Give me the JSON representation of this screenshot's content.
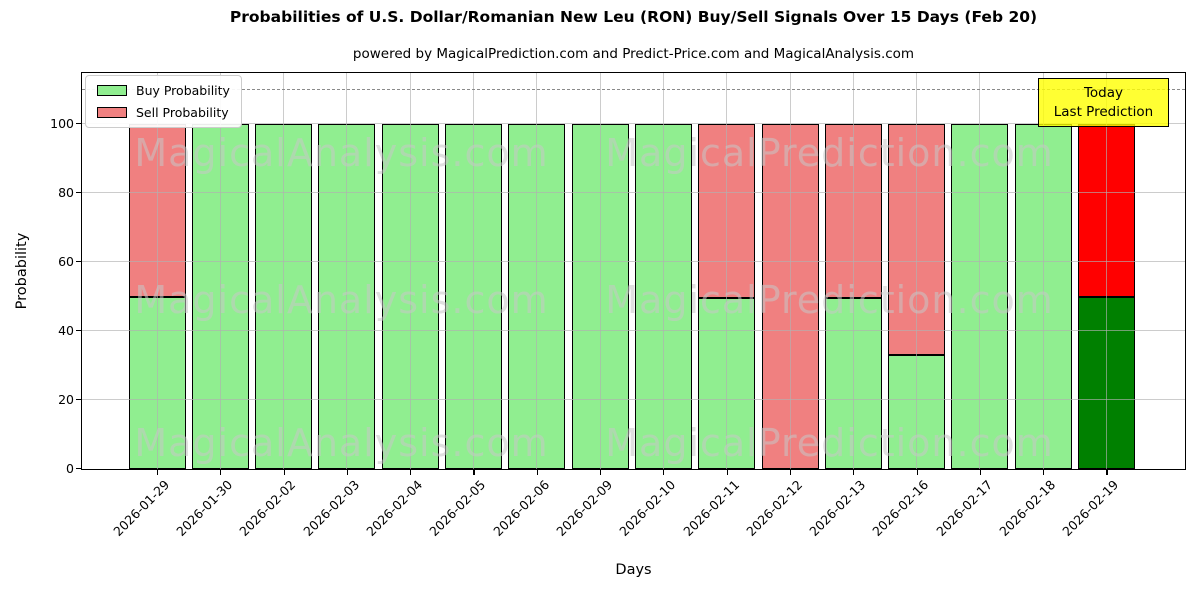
{
  "title": "Probabilities of U.S. Dollar/Romanian New Leu (RON) Buy/Sell Signals Over 15 Days (Feb 20)",
  "subtitle": "powered by MagicalPrediction.com and Predict-Price.com and MagicalAnalysis.com",
  "axes": {
    "xlabel": "Days",
    "ylabel": "Probability",
    "yticks": [
      0,
      20,
      40,
      60,
      80,
      100
    ]
  },
  "legend": {
    "items": [
      {
        "label": "Buy Probability",
        "color": "#90EE90"
      },
      {
        "label": "Sell Probability",
        "color": "#F08080"
      }
    ]
  },
  "annotation": {
    "line1": "Today",
    "line2": "Last Prediction",
    "bg": "#FFFF00"
  },
  "watermarks": [
    "MagicalAnalysis.com",
    "MagicalPrediction.com"
  ],
  "colors": {
    "buy": "#90EE90",
    "sell": "#F08080",
    "today_buy": "#008000",
    "today_sell": "#FF0000",
    "grid": "rgba(176,176,176,0.65)",
    "dash_line": "#8a8a8a",
    "watermark": "#c8c8c8",
    "annotation_bg": "rgba(255,255,0,0.8)"
  },
  "chart_data": {
    "type": "bar",
    "stacked": true,
    "title": "Probabilities of U.S. Dollar/Romanian New Leu (RON) Buy/Sell Signals Over 15 Days (Feb 20)",
    "xlabel": "Days",
    "ylabel": "Probability",
    "ylim": [
      0,
      114.5
    ],
    "grid": true,
    "legend_position": "upper left",
    "dashed_line_y": 110,
    "categories": [
      "2026-01-29",
      "2026-01-30",
      "2026-02-02",
      "2026-02-03",
      "2026-02-04",
      "2026-02-05",
      "2026-02-06",
      "2026-02-09",
      "2026-02-10",
      "2026-02-11",
      "2026-02-12",
      "2026-02-13",
      "2026-02-16",
      "2026-02-17",
      "2026-02-18",
      "2026-02-19"
    ],
    "series": [
      {
        "name": "Buy Probability",
        "color": "#90EE90",
        "values": [
          50,
          100,
          100,
          100,
          100,
          100,
          100,
          100,
          100,
          49.5,
          0,
          49.5,
          33,
          100,
          100,
          50
        ]
      },
      {
        "name": "Sell Probability",
        "color": "#F08080",
        "values": [
          50,
          0,
          0,
          0,
          0,
          0,
          0,
          0,
          0,
          50.5,
          100,
          50.5,
          67,
          0,
          0,
          50
        ]
      }
    ],
    "today_bar": {
      "category": "2026-02-19",
      "buy_color": "#008000",
      "sell_color": "#FF0000"
    }
  }
}
